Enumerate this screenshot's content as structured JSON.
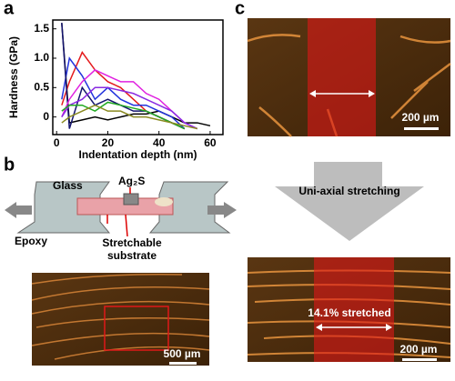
{
  "chart_data": {
    "type": "line",
    "ylabel": "Hardness (GPa)",
    "xlabel": "Indentation depth (nm)",
    "x": [
      2,
      5,
      10,
      15,
      20,
      25,
      30,
      35,
      40,
      45,
      50,
      55,
      60
    ],
    "series": [
      {
        "color": "#000000",
        "values": [
          1.6,
          -0.1,
          -0.05,
          0,
          -0.05,
          0,
          0.05,
          0.05,
          0.1,
          0,
          -0.1,
          -0.1,
          -0.15
        ]
      },
      {
        "color": "#e41a1c",
        "values": [
          0.2,
          0.6,
          1.1,
          0.8,
          0.6,
          0.5,
          0.3,
          0.1,
          0.0,
          -0.1,
          -0.2,
          null,
          null
        ]
      },
      {
        "color": "#2233dd",
        "values": [
          0.3,
          1.0,
          0.7,
          0.3,
          0.5,
          0.3,
          0.2,
          0.2,
          0.1,
          0.0,
          -0.2,
          null,
          null
        ]
      },
      {
        "color": "#14146e",
        "values": [
          1.6,
          -0.2,
          0.5,
          0.2,
          0.3,
          0.2,
          0.1,
          0.1,
          0.0,
          -0.1,
          -0.2,
          null,
          null
        ]
      },
      {
        "color": "#e020e0",
        "values": [
          0.0,
          0.3,
          0.6,
          0.8,
          0.7,
          0.6,
          0.6,
          0.4,
          0.3,
          0.1,
          -0.1,
          -0.2,
          null
        ]
      },
      {
        "color": "#8a2be2",
        "values": [
          0.0,
          0.2,
          0.3,
          0.5,
          0.5,
          0.45,
          0.4,
          0.3,
          0.2,
          0.1,
          -0.1,
          -0.2,
          null
        ]
      },
      {
        "color": "#22aa22",
        "values": [
          0.1,
          0.2,
          0.2,
          0.1,
          0.25,
          0.2,
          0.15,
          0.1,
          0.0,
          -0.1,
          -0.2,
          null,
          null
        ]
      },
      {
        "color": "#8a8a20",
        "values": [
          -0.1,
          0.0,
          0.1,
          0.2,
          0.1,
          0.1,
          0.0,
          0.0,
          -0.05,
          -0.1,
          -0.15,
          -0.2,
          null
        ]
      }
    ],
    "xlim": [
      -1.5,
      65
    ],
    "ylim": [
      -0.3,
      1.65
    ],
    "xticks": [
      0,
      20,
      40,
      60
    ],
    "yticks": [
      0,
      0.5,
      {
        "value": 1,
        "label": "1.0"
      },
      1.5
    ]
  },
  "panels": {
    "a": {
      "label": "a"
    },
    "b": {
      "label": "b",
      "glass": "Glass",
      "ag2s": "Ag₂S",
      "epoxy": "Epoxy",
      "substrate": [
        "Stretchable",
        "substrate"
      ],
      "scale": "500 µm"
    },
    "c": {
      "label": "c",
      "scale_top": "200 µm",
      "arrow_text": "Uni-axial stretching",
      "stretched": "14.1% stretched",
      "scale_bottom": "200 µm"
    }
  }
}
